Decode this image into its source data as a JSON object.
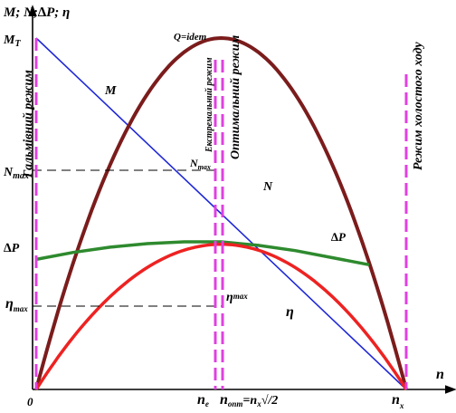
{
  "chart_data": {
    "type": "line",
    "x": [
      0,
      0.1,
      0.2,
      0.3,
      0.4,
      0.5,
      0.55,
      0.6,
      0.7,
      0.8,
      0.9,
      1.0
    ],
    "series": [
      {
        "name": "M",
        "color": "#1f28d6",
        "values": [
          1.0,
          0.9,
          0.8,
          0.7,
          0.6,
          0.5,
          0.45,
          0.4,
          0.3,
          0.2,
          0.1,
          0.0
        ]
      },
      {
        "name": "N",
        "color": "#7b1c1c",
        "values": [
          0.0,
          0.36,
          0.64,
          0.84,
          0.96,
          1.0,
          0.99,
          0.96,
          0.84,
          0.64,
          0.36,
          0.0
        ]
      },
      {
        "name": "ΔP",
        "color": "#2e8a2e",
        "values": [
          0.37,
          0.39,
          0.405,
          0.415,
          0.42,
          0.42,
          0.415,
          0.41,
          0.395,
          0.375,
          0.355,
          null
        ]
      },
      {
        "name": "η",
        "color": "#ee2222",
        "values": [
          0.0,
          0.148,
          0.27,
          0.357,
          0.403,
          0.413,
          0.41,
          0.403,
          0.357,
          0.27,
          0.148,
          0.0
        ]
      }
    ],
    "markers": [
      {
        "x": 0,
        "label": "Гальмівний режим"
      },
      {
        "x": 0.49,
        "label": "Екстремальний режим"
      },
      {
        "x": 0.51,
        "label": "Оптимальний режим"
      },
      {
        "x": 1.0,
        "label": "Режим холостого ходу"
      }
    ],
    "ylabel": "M; N;∆P; η",
    "xlabel": "n",
    "y_ticks": {
      "mt": "M",
      "mt_sub": "T",
      "nmax": "N",
      "nmax_sub": "max",
      "dp": "∆P",
      "etamax": "η",
      "etamax_sub": "max"
    },
    "x_ticks": {
      "zero": "0",
      "ne": "n",
      "ne_sub": "e",
      "nopt": "n",
      "nopt_sub": "опт",
      "nopt_eq": "=n",
      "nopt_eq_sub": "x",
      "nopt_root": "/2",
      "nx": "n",
      "nx_sub": "x"
    },
    "annotations": {
      "q": "Q=idem",
      "nmax_pt": "N",
      "nmax_pt_sub": "max",
      "etamax_pt": "η",
      "etamax_pt_sub": "max",
      "M": "M",
      "N": "N",
      "dP": "∆P",
      "eta": "η"
    },
    "ylim": [
      0,
      1.0
    ],
    "xlim": [
      0,
      1.0
    ],
    "grid": false,
    "legend": "none"
  }
}
